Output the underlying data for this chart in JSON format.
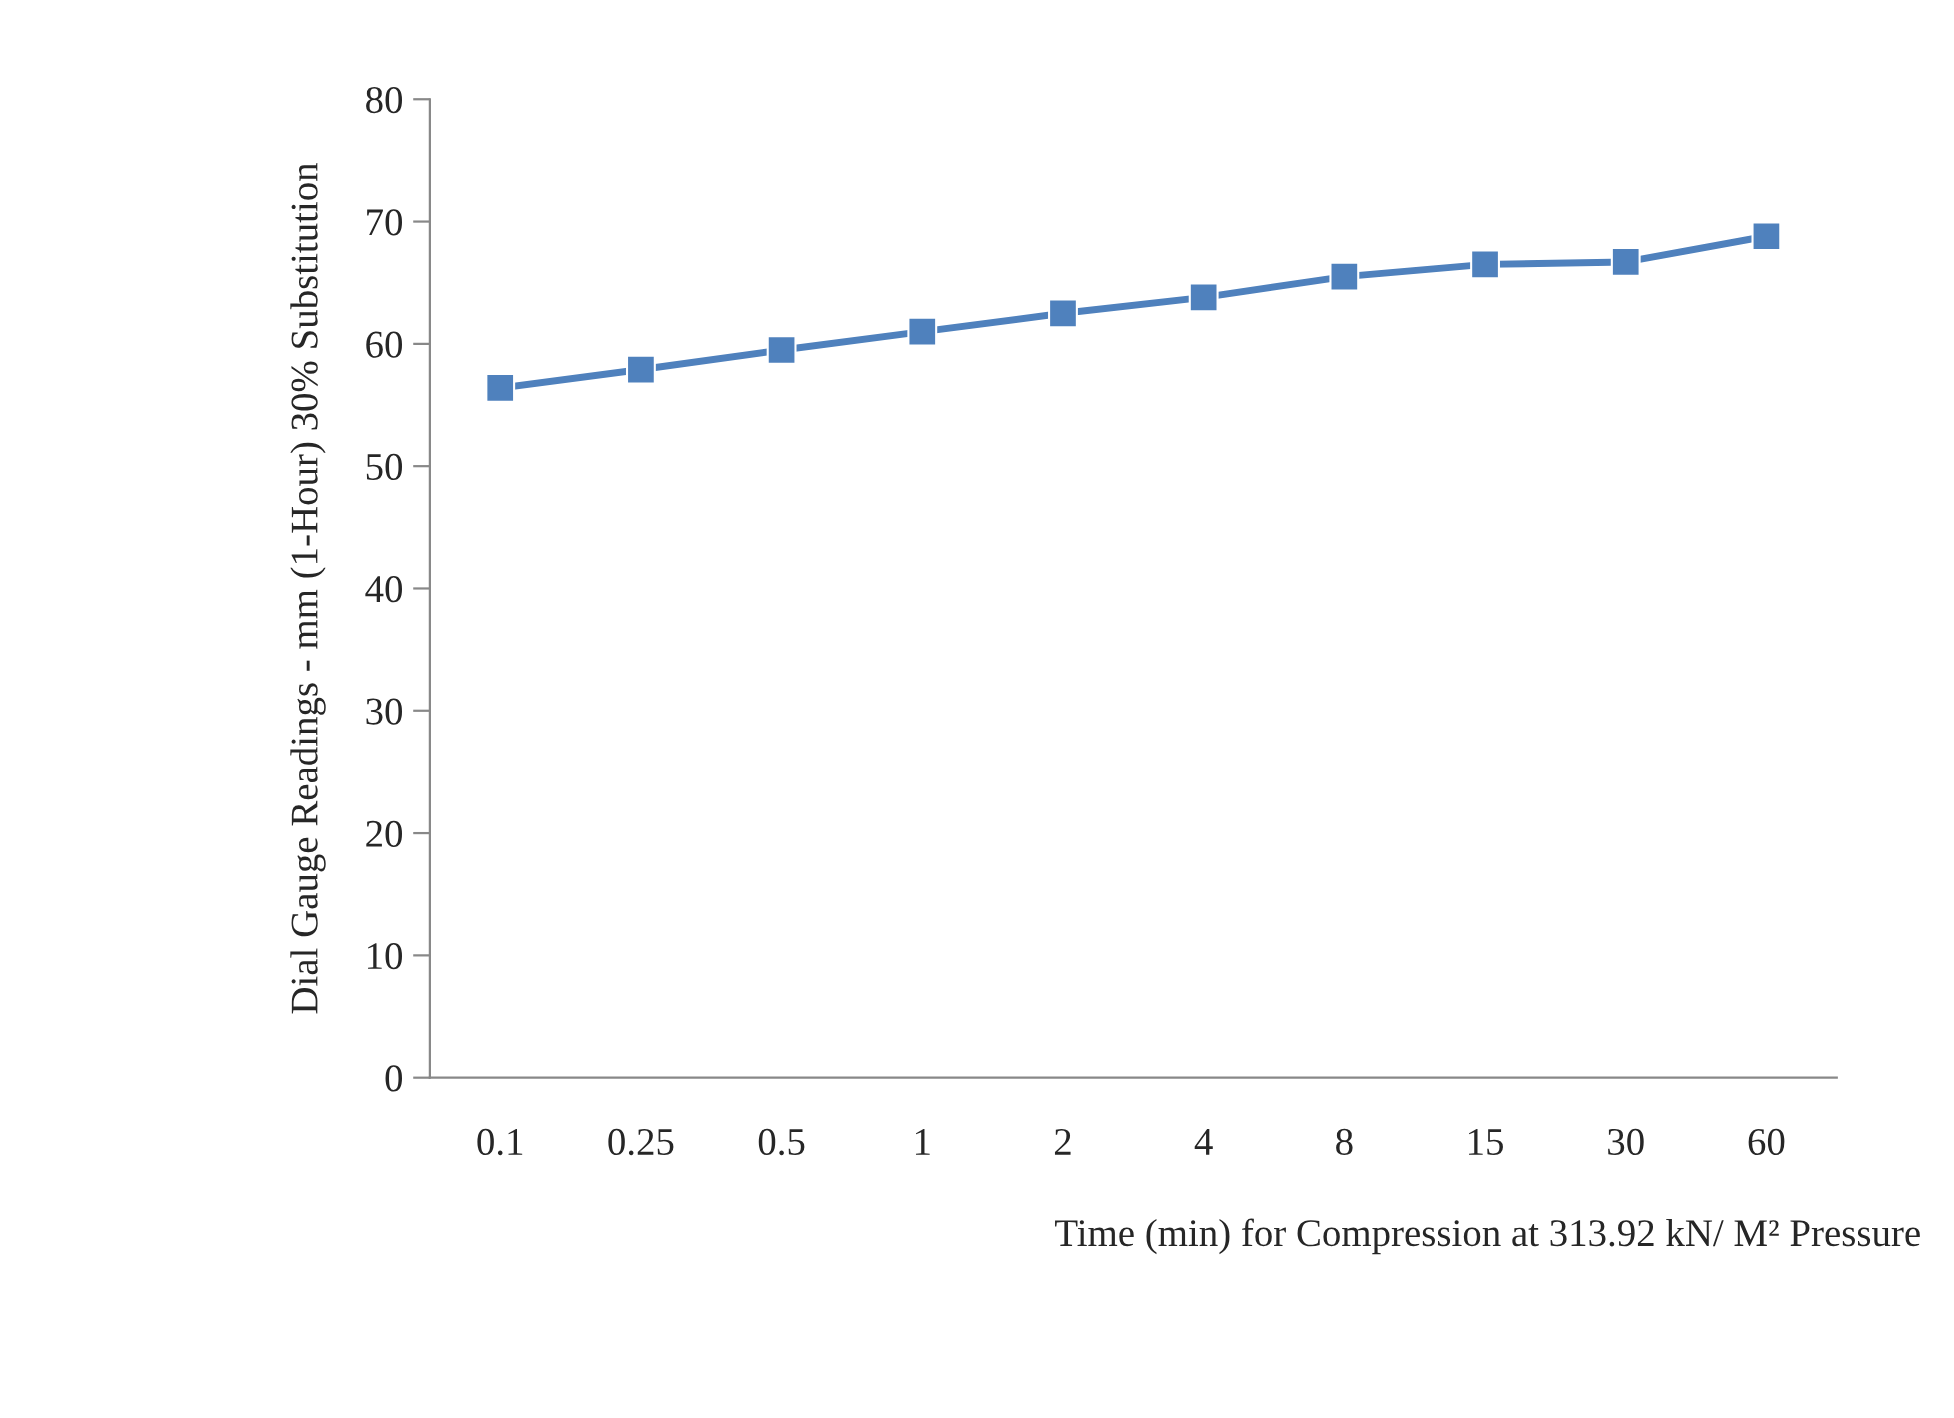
{
  "chart_data": {
    "type": "line",
    "xlabel": "Time (min) for Compression at 313.92 kN/ M² Pressure",
    "ylabel": "Dial Gauge Readings - mm (1-Hour) 30% Substitution",
    "categories": [
      "0.1",
      "0.25",
      "0.5",
      "1",
      "2",
      "4",
      "8",
      "15",
      "30",
      "60"
    ],
    "series": [
      {
        "color": "#4f81bd",
        "values": [
          56.4,
          57.9,
          59.5,
          61.0,
          62.5,
          63.8,
          65.5,
          66.5,
          66.7,
          68.8
        ]
      }
    ],
    "ylim": [
      0,
      80
    ],
    "yticks": [
      0,
      10,
      20,
      30,
      40,
      50,
      60,
      70,
      80
    ],
    "marker": "square",
    "line_style": "solid",
    "grid": false,
    "legend": false
  }
}
